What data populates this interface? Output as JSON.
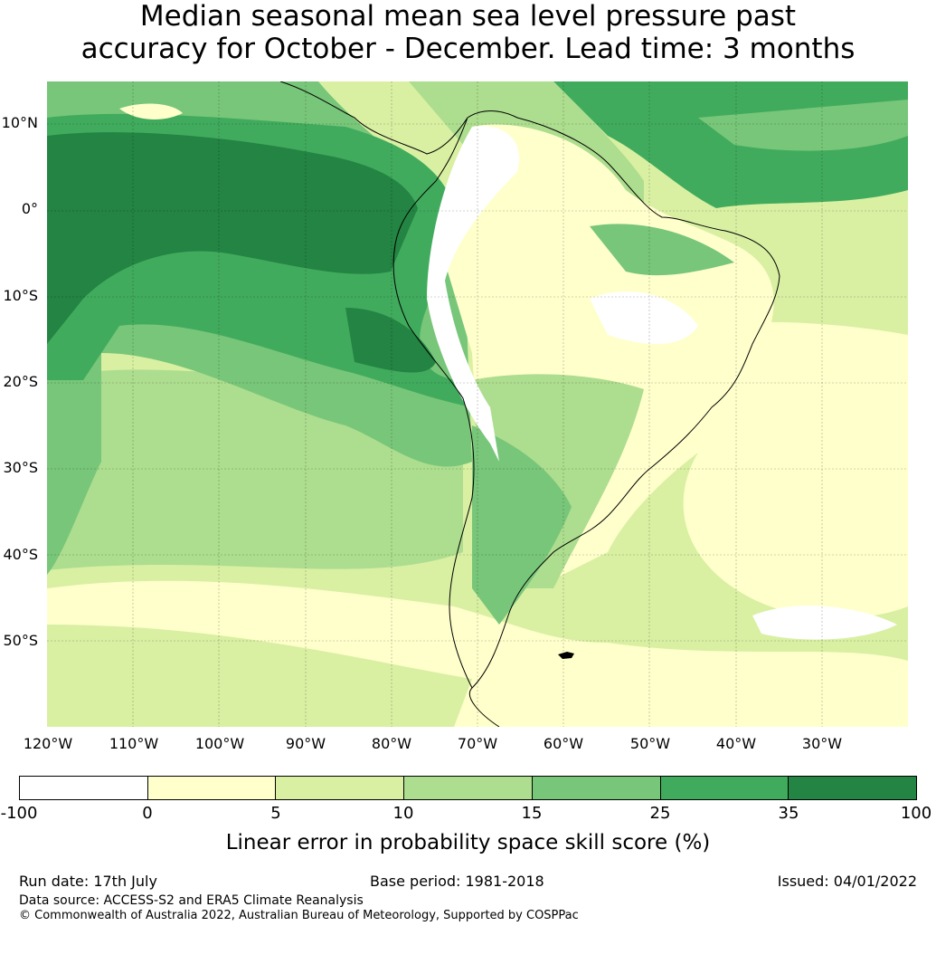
{
  "title_line1": "Median seasonal mean sea level pressure past",
  "title_line2": "accuracy for October - December. Lead time: 3 months",
  "map": {
    "lon_range": [
      -120,
      -20
    ],
    "lat_range": [
      -60,
      15
    ],
    "lat_labels": [
      "10°N",
      "0°",
      "10°S",
      "20°S",
      "30°S",
      "40°S",
      "50°S"
    ],
    "lon_labels": [
      "120°W",
      "110°W",
      "100°W",
      "90°W",
      "80°W",
      "70°W",
      "60°W",
      "50°W",
      "40°W",
      "30°W"
    ],
    "grid": "on",
    "colors": {
      "neg": "#ffffff",
      "c0_5": "#ffffcc",
      "c5_10": "#d9f0a3",
      "c10_15": "#addd8e",
      "c15_25": "#78c679",
      "c25_35": "#41ab5d",
      "c35_100": "#238443"
    }
  },
  "colorbar": {
    "ticks": [
      "-100",
      "0",
      "5",
      "10",
      "15",
      "25",
      "35",
      "100"
    ],
    "colors": [
      "#ffffff",
      "#ffffcc",
      "#d9f0a3",
      "#addd8e",
      "#78c679",
      "#41ab5d",
      "#238443"
    ],
    "label": "Linear error in probability space skill score (%)"
  },
  "footer": {
    "run_date": "Run date: 17th July",
    "base_period": "Base period: 1981-2018",
    "issued": "Issued: 04/01/2022",
    "data_source": "Data source: ACCESS-S2 and ERA5 Climate Reanalysis",
    "credit": "© Commonwealth of Australia 2022, Australian Bureau of Meteorology, Supported by COSPPac"
  }
}
